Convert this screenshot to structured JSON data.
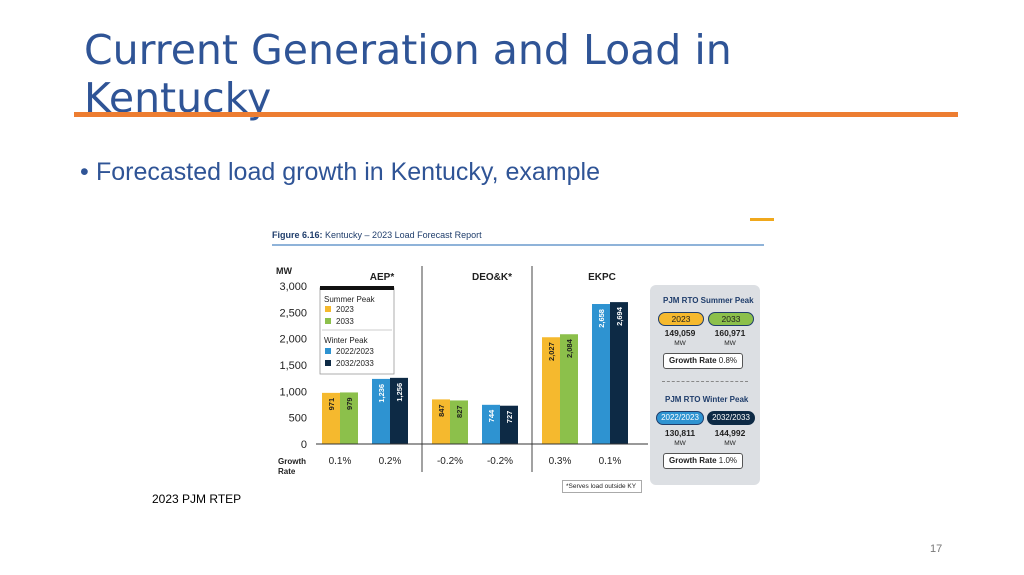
{
  "slide": {
    "title": "Current Generation and Load in Kentucky",
    "bullet": "Forecasted load growth in Kentucky, example",
    "source": "2023 PJM RTEP",
    "page_number": "17"
  },
  "colors": {
    "title": "#2f5496",
    "accent_rule": "#ed7d31",
    "summer_2023": "#f5b92e",
    "summer_2033": "#8cc04b",
    "winter_2022_2023": "#2e93d1",
    "winter_2032_2033": "#0d2a45"
  },
  "figure": {
    "caption_bold": "Figure 6.16:",
    "caption_rest": "Kentucky – 2023 Load Forecast Report",
    "footnote": "*Serves load outside KY",
    "side_panel": {
      "summer_title": "PJM RTO Summer Peak",
      "summer": [
        {
          "label": "2023",
          "value": "149,059",
          "unit": "MW"
        },
        {
          "label": "2033",
          "value": "160,971",
          "unit": "MW"
        }
      ],
      "summer_growth_label": "Growth Rate",
      "summer_growth_value": "0.8%",
      "winter_title": "PJM RTO Winter Peak",
      "winter": [
        {
          "label": "2022/2023",
          "value": "130,811",
          "unit": "MW"
        },
        {
          "label": "2032/2033",
          "value": "144,992",
          "unit": "MW"
        }
      ],
      "winter_growth_label": "Growth Rate",
      "winter_growth_value": "1.0%"
    }
  },
  "chart_data": {
    "type": "bar",
    "ylabel": "MW",
    "ylim": [
      0,
      3000
    ],
    "yticks": [
      "0",
      "500",
      "1,000",
      "1,500",
      "2,000",
      "2,500",
      "3,000"
    ],
    "ytick_values": [
      0,
      500,
      1000,
      1500,
      2000,
      2500,
      3000
    ],
    "categories": [
      "AEP*",
      "DEO&K*",
      "EKPC"
    ],
    "series": [
      {
        "name": "2023",
        "group": "Summer Peak",
        "values": [
          971,
          847,
          2027
        ],
        "labels": [
          "971",
          "847",
          "2,027"
        ]
      },
      {
        "name": "2033",
        "group": "Summer Peak",
        "values": [
          979,
          827,
          2084
        ],
        "labels": [
          "979",
          "827",
          "2,084"
        ]
      },
      {
        "name": "2022/2023",
        "group": "Winter Peak",
        "values": [
          1236,
          744,
          2658
        ],
        "labels": [
          "1,236",
          "744",
          "2,658"
        ]
      },
      {
        "name": "2032/2033",
        "group": "Winter Peak",
        "values": [
          1256,
          727,
          2694
        ],
        "labels": [
          "1,256",
          "727",
          "2,694"
        ]
      }
    ],
    "growth_row_label": "Growth Rate",
    "growth_rates": [
      {
        "summer": "0.1%",
        "winter": "0.2%"
      },
      {
        "summer": "-0.2%",
        "winter": "-0.2%"
      },
      {
        "summer": "0.3%",
        "winter": "0.1%"
      }
    ],
    "legend": {
      "placement": "top-left",
      "summer_title": "Summer Peak",
      "winter_title": "Winter Peak"
    }
  }
}
